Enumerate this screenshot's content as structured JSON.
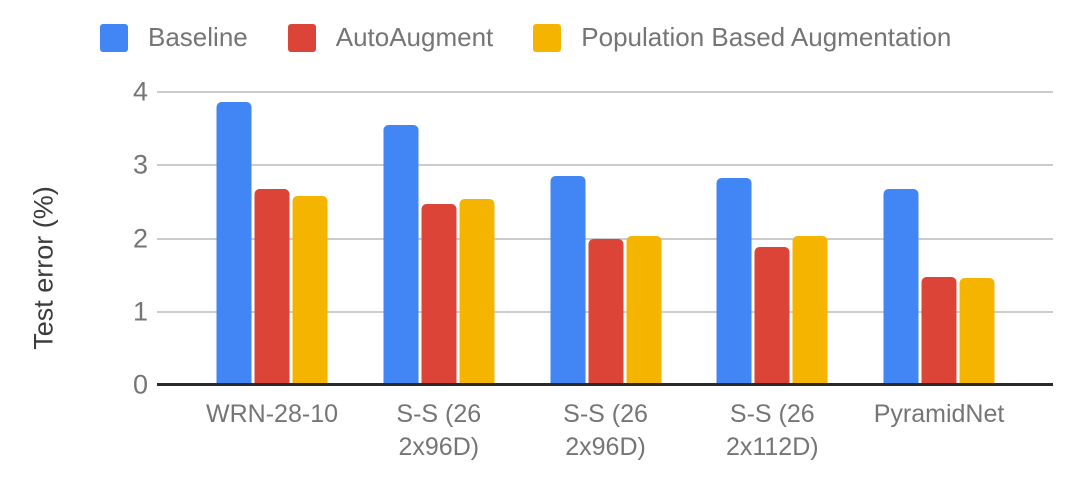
{
  "chart_data": {
    "type": "bar",
    "title": "",
    "xlabel": "",
    "ylabel": "Test error (%)",
    "ylim": [
      0,
      4
    ],
    "yticks": [
      0,
      1,
      2,
      3,
      4
    ],
    "grid": true,
    "legend_position": "top-left",
    "categories": [
      "WRN-28-10",
      "S-S (26\n2x96D)",
      "S-S (26\n2x96D)",
      "S-S (26\n2x112D)",
      "PyramidNet"
    ],
    "series": [
      {
        "name": "Baseline",
        "color": "#4285F4",
        "values": [
          3.87,
          3.55,
          2.86,
          2.82,
          2.67
        ]
      },
      {
        "name": "AutoAugment",
        "color": "#DB4437",
        "values": [
          2.68,
          2.47,
          1.99,
          1.89,
          1.48
        ]
      },
      {
        "name": "Population Based Augmentation",
        "color": "#F4B400",
        "values": [
          2.58,
          2.54,
          2.03,
          2.03,
          1.46
        ]
      }
    ],
    "colors": {
      "gridline": "#cccccc",
      "axis_line": "#2b2b2b",
      "tick_label": "#757575",
      "axis_title": "#3c3c3c",
      "background": "#ffffff"
    }
  }
}
